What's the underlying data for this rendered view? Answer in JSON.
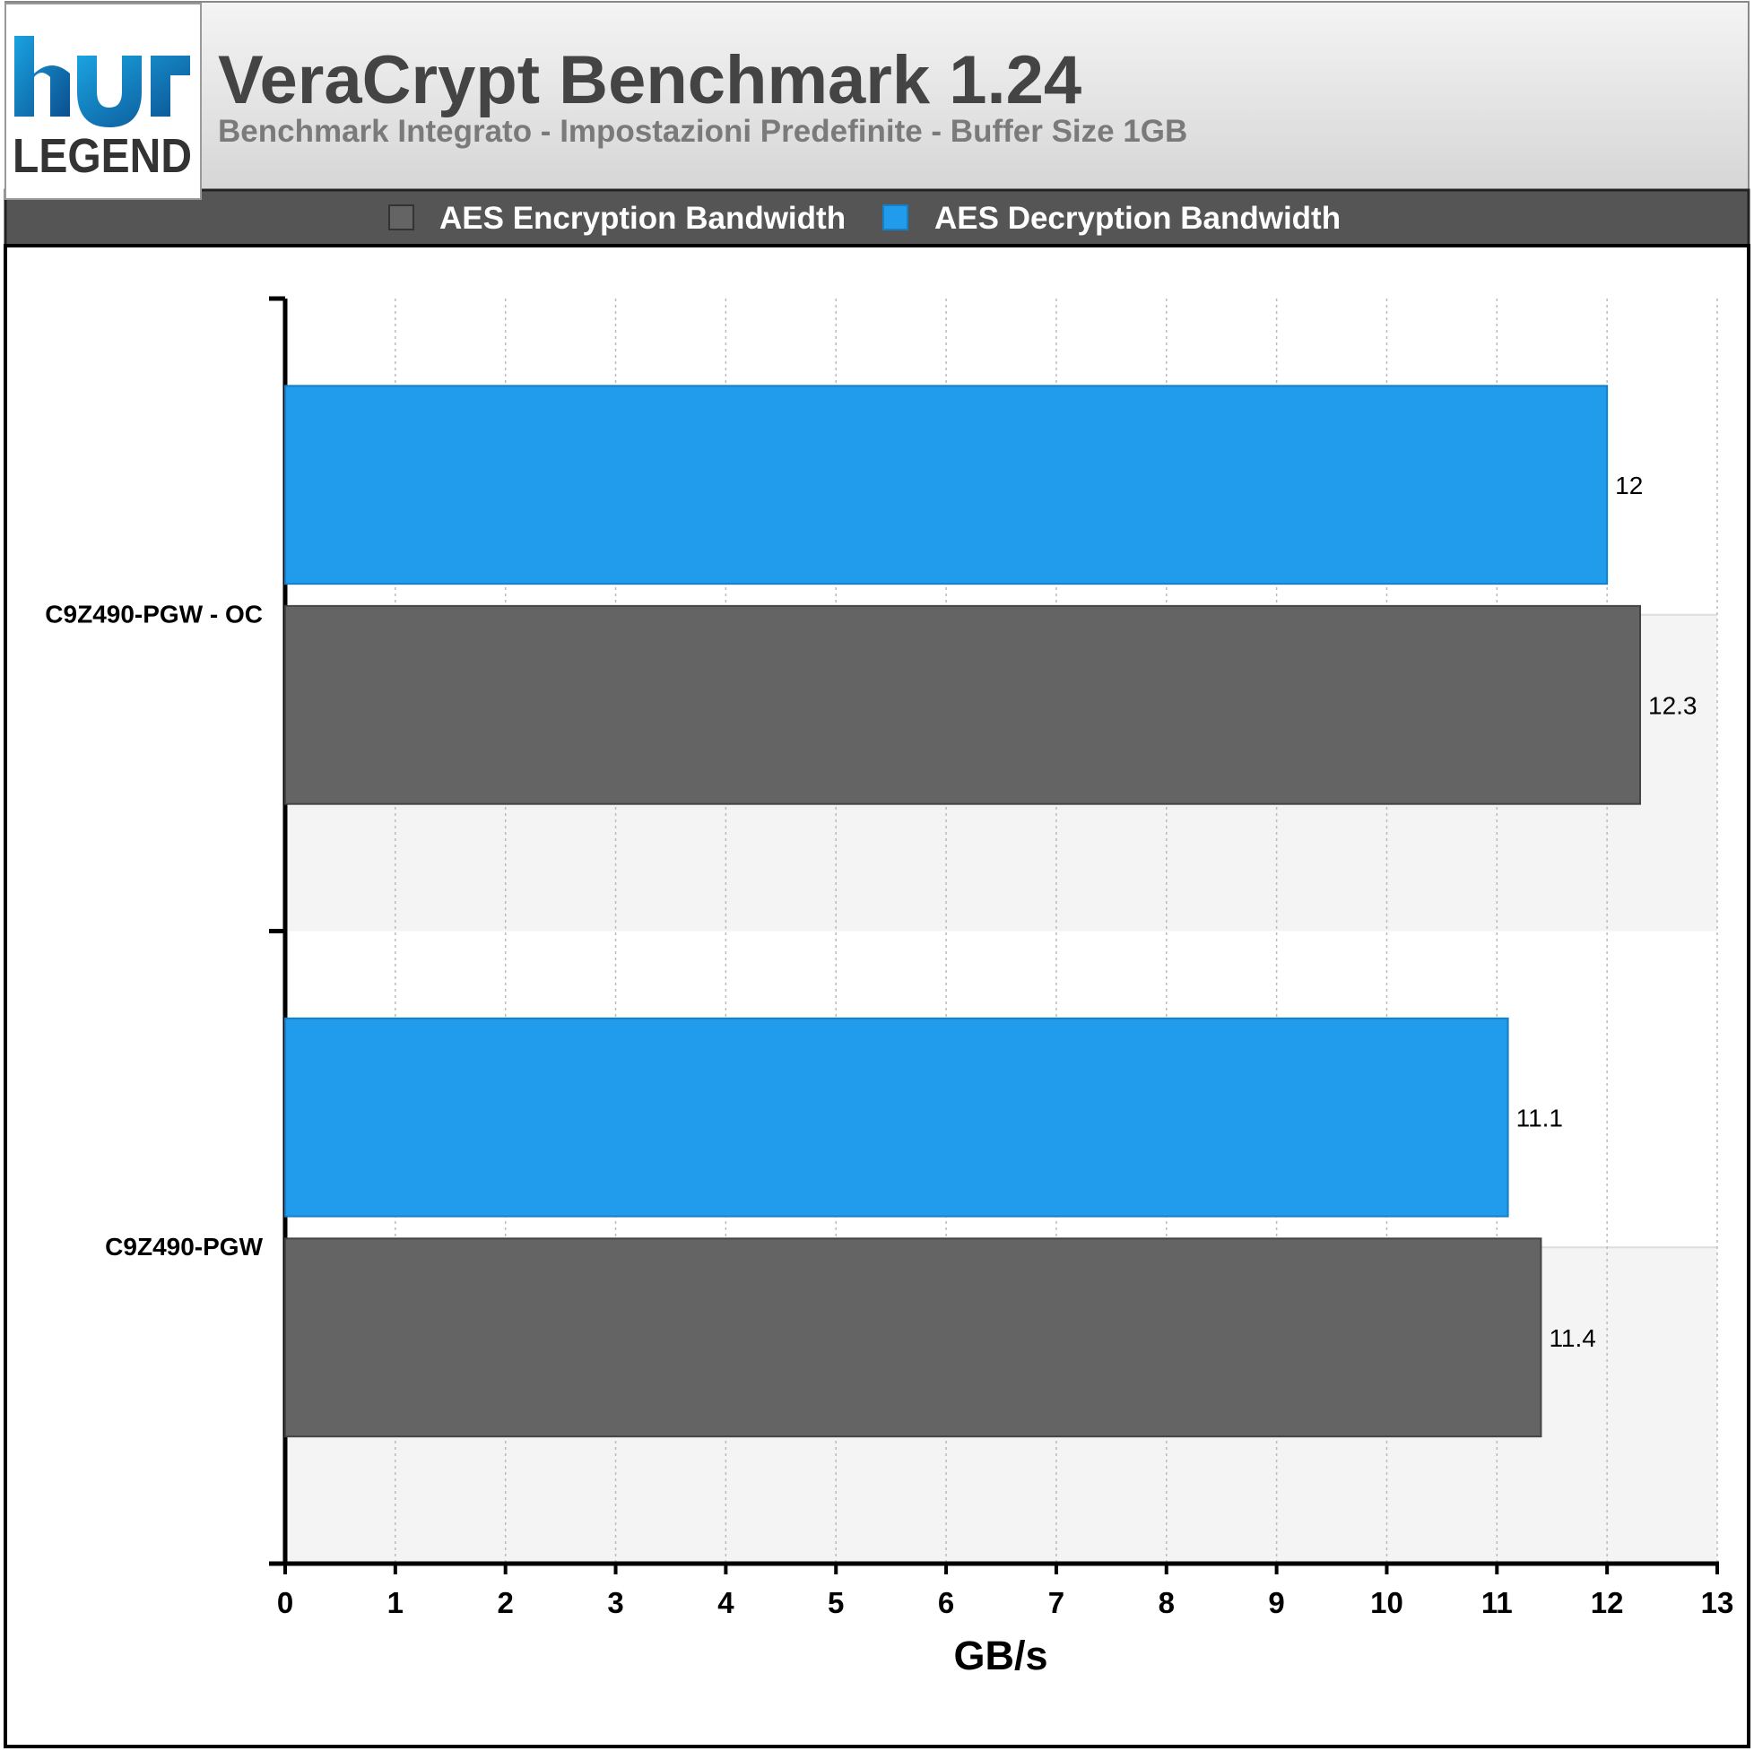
{
  "chart_data": {
    "type": "hbar",
    "title": "VeraCrypt Benchmark 1.24",
    "subtitle": "Benchmark Integrato - Impostazioni Predefinite - Buffer Size 1GB",
    "logo": "LEGEND",
    "categories": [
      "C9Z490-PGW - OC",
      "C9Z490-PGW"
    ],
    "series": [
      {
        "name": "AES Encryption Bandwidth",
        "color": "#646464",
        "values": [
          12.3,
          11.4
        ]
      },
      {
        "name": "AES Decryption Bandwidth",
        "color": "#219bec",
        "values": [
          12,
          11.1
        ]
      }
    ],
    "xlabel": "GB/s",
    "xlim": [
      0,
      13
    ],
    "xticks": [
      0,
      1,
      2,
      3,
      4,
      5,
      6,
      7,
      8,
      9,
      10,
      11,
      12,
      13
    ],
    "grid": true
  }
}
